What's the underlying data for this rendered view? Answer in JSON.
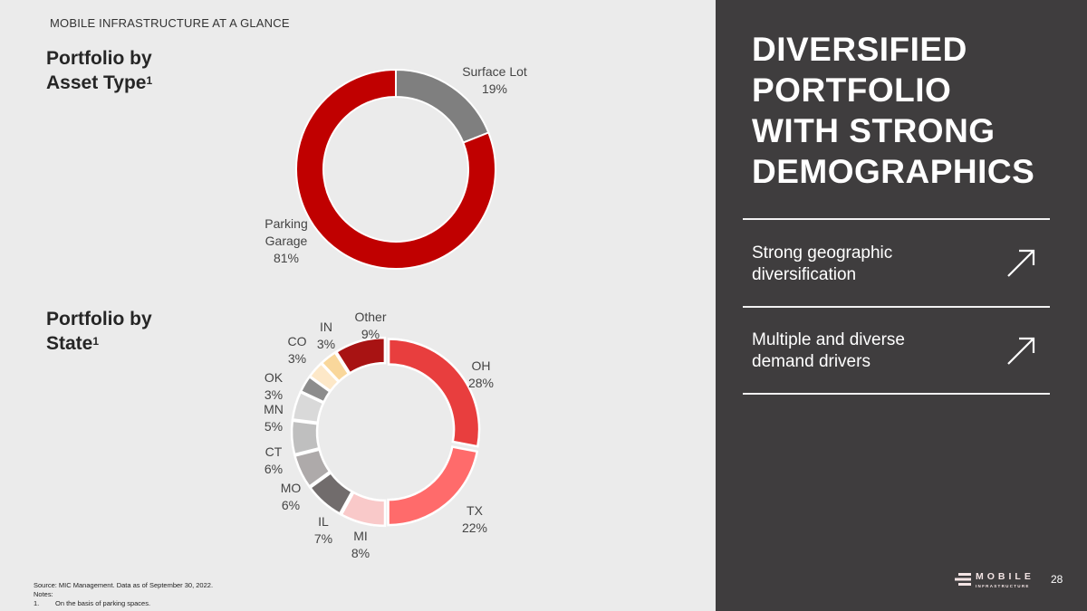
{
  "eyebrow": "MOBILE INFRASTRUCTURE AT A GLANCE",
  "headline": [
    "DIVERSIFIED",
    "PORTFOLIO",
    "WITH STRONG",
    "DEMOGRAPHICS"
  ],
  "points": [
    {
      "text_line1": "Strong geographic",
      "text_line2": "diversification",
      "icon": "arrow-up-right-icon"
    },
    {
      "text_line1": "Multiple and diverse",
      "text_line2": "demand drivers",
      "icon": "arrow-up-right-icon"
    }
  ],
  "footer": {
    "source": "Source: MIC Management. Data as of September 30, 2022.",
    "notes_label": "Notes:",
    "note_number": "1.",
    "note_text": "On the basis of parking spaces."
  },
  "logo": {
    "word": "MOBILE",
    "sub": "INFRASTRUCTURE"
  },
  "page_number": "28",
  "colors": {
    "brand_red": "#c00000",
    "dark_panel": "#3f3d3e",
    "background": "#ebebeb"
  },
  "chart_data": [
    {
      "type": "pie",
      "donut": true,
      "title_line1": "Portfolio by",
      "title_line2": "Asset Type",
      "title_sup": "1",
      "unit": "%",
      "categories": [
        "Surface Lot",
        "Parking Garage"
      ],
      "values": [
        19,
        81
      ],
      "label_lines": [
        [
          "Surface Lot",
          "19%"
        ],
        [
          "Parking",
          "Garage",
          "81%"
        ]
      ],
      "colors": [
        "#7f7f7f",
        "#c00000"
      ]
    },
    {
      "type": "pie",
      "donut": true,
      "title_line1": "Portfolio by",
      "title_line2": "State",
      "title_sup": "1",
      "unit": "%",
      "categories": [
        "OH",
        "TX",
        "MI",
        "IL",
        "MO",
        "CT",
        "MN",
        "OK",
        "CO",
        "IN",
        "Other"
      ],
      "values": [
        28,
        22,
        8,
        7,
        6,
        6,
        5,
        3,
        3,
        3,
        9
      ],
      "colors": [
        "#e83e3e",
        "#ff6b6b",
        "#f9c9c9",
        "#716c6c",
        "#aeaaaa",
        "#bfbfbf",
        "#d9d9d9",
        "#8c8c8c",
        "#fde8c8",
        "#f9d79b",
        "#a81313"
      ]
    }
  ]
}
